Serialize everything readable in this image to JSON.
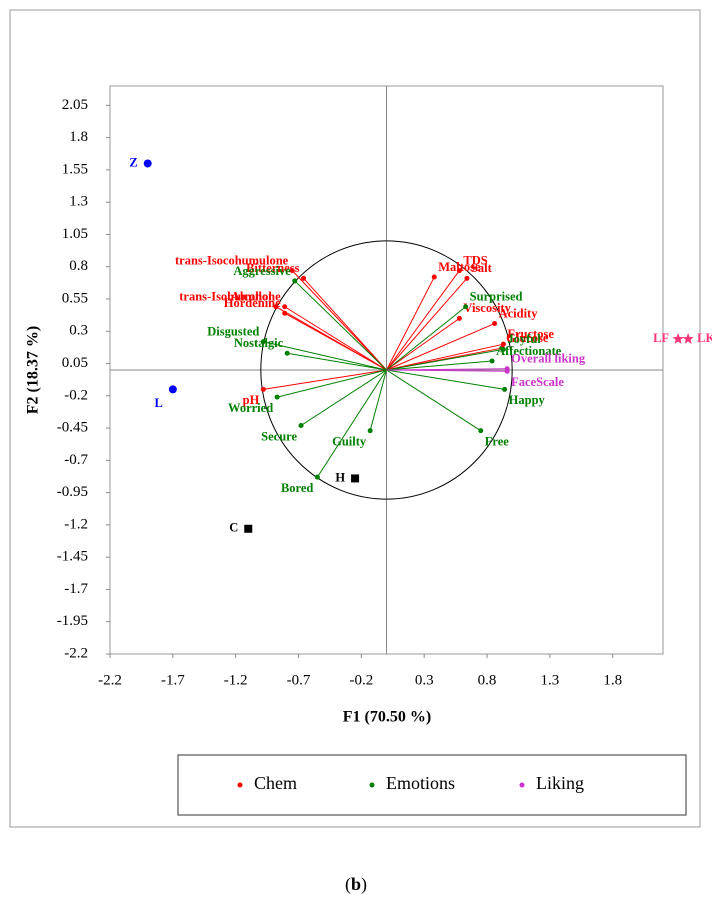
{
  "chart_data": {
    "type": "biplot",
    "x_label": "F1 (70.50 %)",
    "y_label": "F2 (18.37 %)",
    "xlim": [
      -2.2,
      2.2
    ],
    "ylim": [
      -2.2,
      2.2
    ],
    "xticks": [
      -2.2,
      -1.7,
      -1.2,
      -0.7,
      -0.2,
      0.3,
      0.8,
      1.3,
      1.8
    ],
    "yticks": [
      2.05,
      1.8,
      1.55,
      1.3,
      1.05,
      0.8,
      0.55,
      0.3,
      0.05,
      -0.2,
      -0.45,
      -0.7,
      -0.95,
      -1.2,
      -1.45,
      -1.7,
      -1.95,
      -2.2
    ],
    "correlation_circle": {
      "radius": 1
    },
    "series": [
      {
        "name": "Chem",
        "color": "#ff0000",
        "labels": [
          "Bitterness",
          "trans-Isocohumulone",
          "trans-Isohumulone",
          "Alcohol",
          "Hordenine",
          "pH",
          "Maltose",
          "TDS",
          "Salt",
          "Viscosity",
          "Acidity",
          "Glucose",
          "Fructose"
        ],
        "x": [
          -0.66,
          -0.75,
          -0.81,
          -0.88,
          -0.81,
          -0.98,
          0.38,
          0.58,
          0.64,
          0.58,
          0.86,
          0.92,
          0.93
        ],
        "values": [
          0.71,
          0.77,
          0.49,
          0.49,
          0.44,
          -0.15,
          0.72,
          0.77,
          0.71,
          0.4,
          0.36,
          0.17,
          0.2
        ]
      },
      {
        "name": "Emotions",
        "color": "#008000",
        "labels": [
          "Aggressive",
          "Disgusted",
          "Nostalgic",
          "Worried",
          "Secure",
          "Guilty",
          "Bored",
          "Free",
          "Happy",
          "Affectionate",
          "Joyful",
          "Surprised"
        ],
        "x": [
          -0.73,
          -0.98,
          -0.79,
          -0.87,
          -0.68,
          -0.13,
          -0.55,
          0.75,
          0.94,
          0.84,
          0.93,
          0.63
        ],
        "values": [
          0.69,
          0.22,
          0.13,
          -0.21,
          -0.43,
          -0.47,
          -0.83,
          -0.47,
          -0.15,
          0.07,
          0.16,
          0.49
        ]
      },
      {
        "name": "Liking",
        "color": "#cc33cc",
        "labels": [
          "Overall liking",
          "FaceScale"
        ],
        "x": [
          0.96,
          0.96
        ],
        "values": [
          0.01,
          -0.01
        ]
      }
    ],
    "observations": [
      {
        "label": "Z",
        "x": -1.9,
        "y": 1.6,
        "color": "#0000ff",
        "marker": "circle"
      },
      {
        "label": "L",
        "x": -1.7,
        "y": -0.15,
        "color": "#0000ff",
        "marker": "circle"
      },
      {
        "label": "LF",
        "x": 2.32,
        "y": 0.24,
        "color": "#ff3377",
        "marker": "star"
      },
      {
        "label": "LK",
        "x": 2.4,
        "y": 0.24,
        "color": "#ff3377",
        "marker": "star"
      },
      {
        "label": "H",
        "x": -0.25,
        "y": -0.84,
        "color": "#000000",
        "marker": "square"
      },
      {
        "label": "C",
        "x": -1.1,
        "y": -1.23,
        "color": "#000000",
        "marker": "square"
      }
    ]
  },
  "caption": {
    "prefix": "(",
    "emphasis": "b",
    "suffix": ")"
  }
}
